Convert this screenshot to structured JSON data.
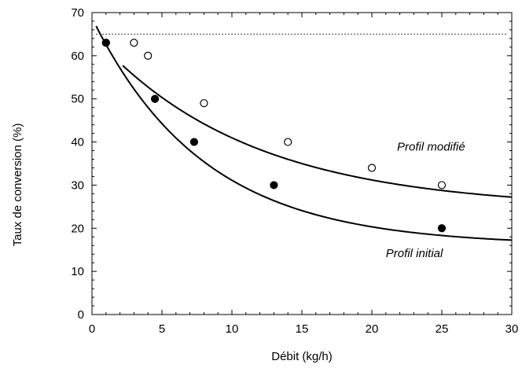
{
  "chart_data": {
    "type": "scatter",
    "title": "",
    "xlabel": "Débit (kg/h)",
    "ylabel": "Taux de conversion (%)",
    "xlim": [
      0,
      30
    ],
    "ylim": [
      0,
      70
    ],
    "xticks": [
      "0",
      "5",
      "10",
      "15",
      "20",
      "25",
      "30"
    ],
    "yticks": [
      "0",
      "10",
      "20",
      "30",
      "40",
      "50",
      "60",
      "70"
    ],
    "grid": false,
    "reference_line": {
      "y": 65,
      "style": "dotted"
    },
    "series": [
      {
        "name": "Profil modifié",
        "marker": "open-circle",
        "points": [
          [
            1,
            63
          ],
          [
            3,
            63
          ],
          [
            4,
            60
          ],
          [
            8,
            49
          ],
          [
            14,
            40
          ],
          [
            20,
            34
          ],
          [
            25,
            30
          ]
        ],
        "curve": {
          "plateau": 65,
          "floor": 24.5,
          "amplitude": 40.5,
          "rate": 0.09,
          "x_start": 2.2,
          "x_end": 30
        }
      },
      {
        "name": "Profil initial",
        "marker": "filled-circle",
        "points": [
          [
            1,
            63
          ],
          [
            4.5,
            50
          ],
          [
            7.3,
            40
          ],
          [
            13,
            30
          ],
          [
            25,
            20
          ]
        ],
        "curve": {
          "floor": 16,
          "amplitude": 52.8,
          "rate": 0.125,
          "x_start": 0.3,
          "x_end": 30
        }
      }
    ],
    "annotations": [
      {
        "text": "Profil modifié",
        "x": 21.8,
        "y": 38,
        "series": "Profil modifié"
      },
      {
        "text": "Profil initial",
        "x": 21.0,
        "y": 13.3,
        "series": "Profil initial"
      }
    ]
  }
}
